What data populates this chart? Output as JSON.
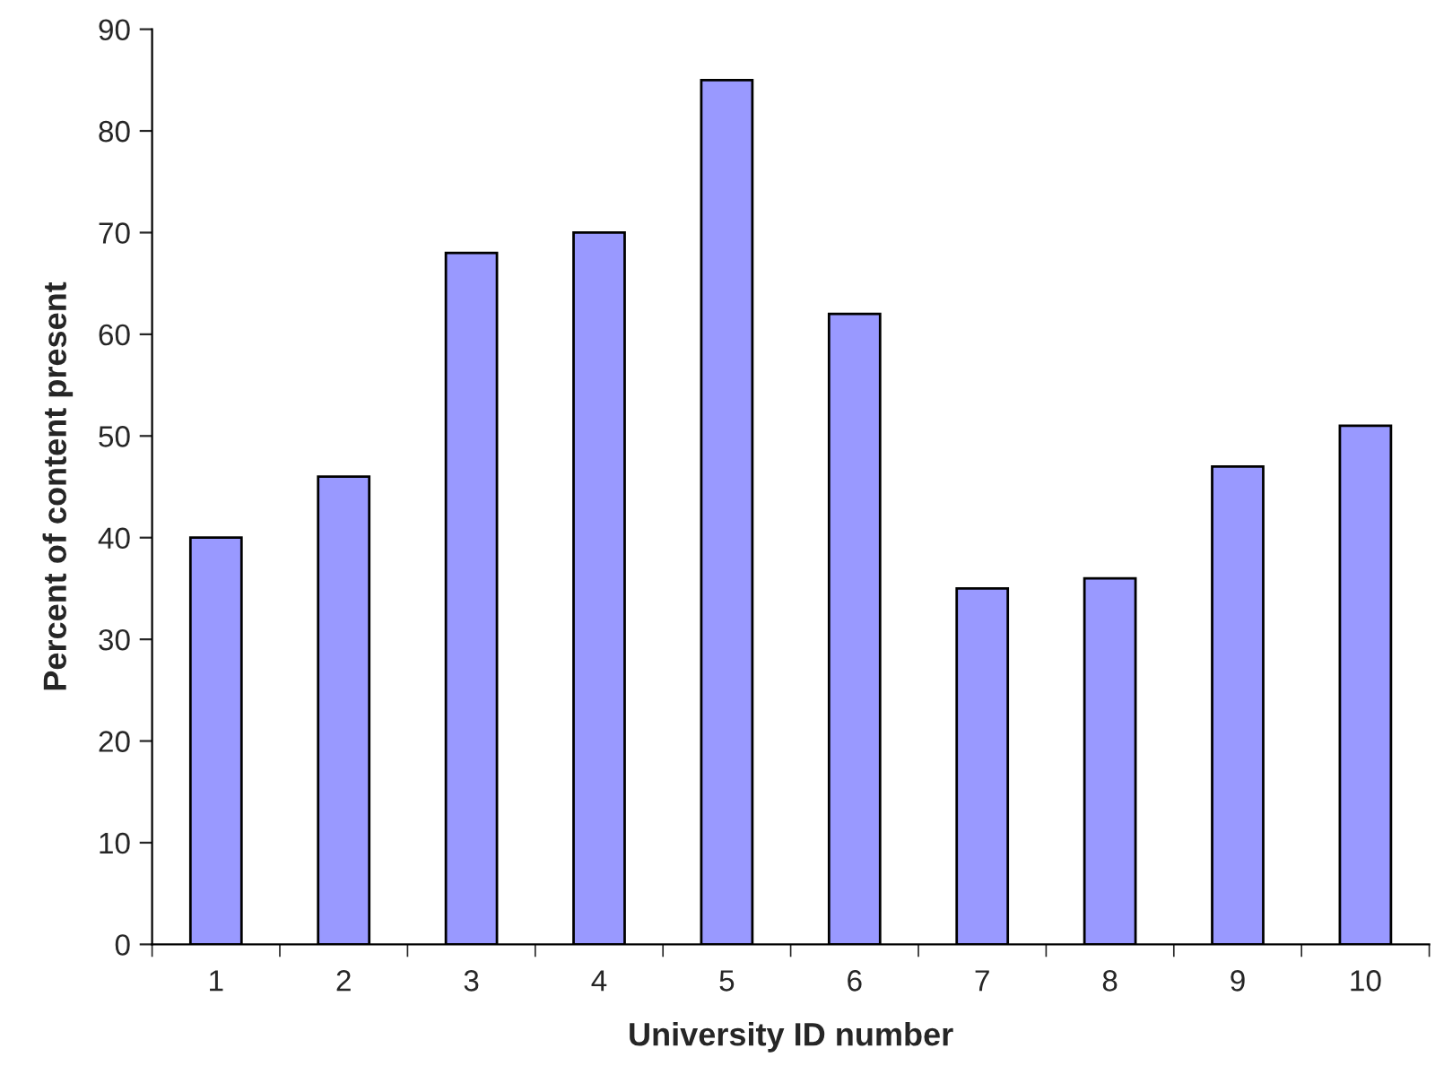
{
  "chart_data": {
    "type": "bar",
    "xlabel": "University ID number",
    "ylabel": "Percent of content present",
    "categories": [
      "1",
      "2",
      "3",
      "4",
      "5",
      "6",
      "7",
      "8",
      "9",
      "10"
    ],
    "values": [
      40,
      46,
      68,
      70,
      85,
      62,
      35,
      36,
      47,
      51
    ],
    "color": "#9999ff",
    "ylim": [
      0,
      90
    ],
    "yticks": [
      0,
      10,
      20,
      30,
      40,
      50,
      60,
      70,
      80,
      90
    ],
    "grid": false,
    "legend": false
  }
}
